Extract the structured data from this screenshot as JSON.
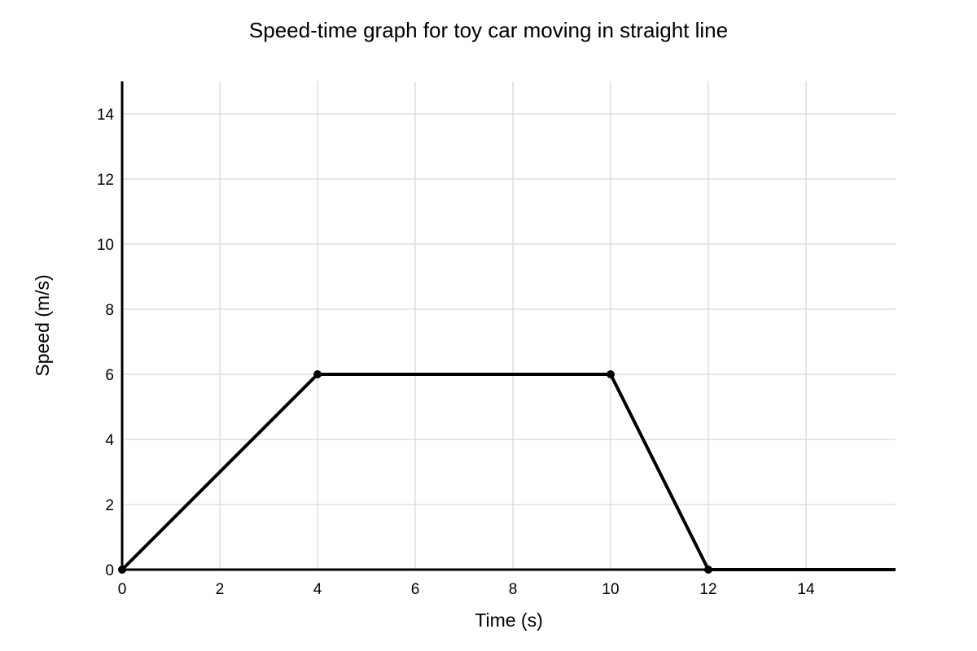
{
  "chart_data": {
    "type": "line",
    "title": "Speed-time graph for toy car moving in straight line",
    "xlabel": "Time (s)",
    "ylabel": "Speed (m/s)",
    "xlim": [
      0,
      15.83
    ],
    "ylim": [
      0,
      15
    ],
    "x_ticks": [
      0,
      2,
      4,
      6,
      8,
      10,
      12,
      14
    ],
    "y_ticks": [
      0,
      2,
      4,
      6,
      8,
      10,
      12,
      14
    ],
    "grid": true,
    "legend": "none",
    "line_color": "#000000",
    "grid_color": "#dddddd",
    "series": [
      {
        "points": [
          {
            "x": 0,
            "y": 0
          },
          {
            "x": 4,
            "y": 6
          },
          {
            "x": 10,
            "y": 6
          },
          {
            "x": 12,
            "y": 0
          }
        ],
        "tail_to_xmax": true
      }
    ]
  }
}
